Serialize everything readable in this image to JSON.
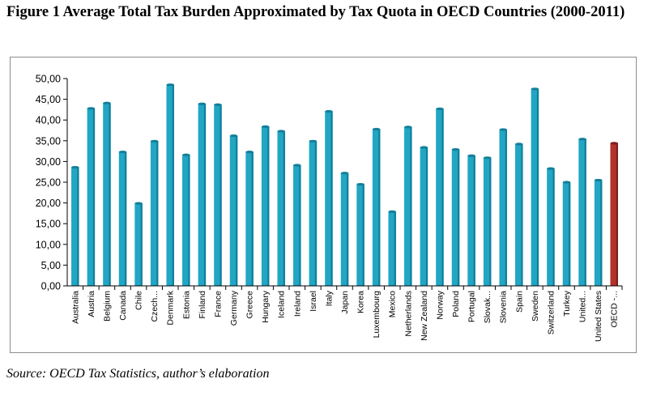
{
  "figure": {
    "caption": "Figure 1 Average Total Tax Burden Approximated by Tax Quota in OECD Countries (2000-2011)",
    "source": "Source: OECD Tax Statistics, author’s elaboration"
  },
  "colors": {
    "bar": "#21a6c4",
    "bar_dark": "#137f98",
    "highlight": "#b3322d",
    "highlight_dark": "#7d1f1b",
    "axis": "#000000"
  },
  "chart_data": {
    "type": "bar",
    "title": "",
    "xlabel": "",
    "ylabel": "",
    "ylim": [
      0,
      50
    ],
    "yticks": [
      "0,00",
      "5,00",
      "10,00",
      "15,00",
      "20,00",
      "25,00",
      "30,00",
      "35,00",
      "40,00",
      "45,00",
      "50,00"
    ],
    "grid": false,
    "legend": "none",
    "highlight_category": "OECD -...",
    "categories": [
      "Australia",
      "Austria",
      "Belgium",
      "Canada",
      "Chile",
      "Czech...",
      "Denmark",
      "Estonia",
      "Finland",
      "France",
      "Germany",
      "Greece",
      "Hungary",
      "Iceland",
      "Ireland",
      "Israel",
      "Italy",
      "Japan",
      "Korea",
      "Luxembourg",
      "Mexico",
      "Netherlands",
      "New Zealand",
      "Norway",
      "Poland",
      "Portugal",
      "Slovak...",
      "Slovenia",
      "Spain",
      "Sweden",
      "Switzerland",
      "Turkey",
      "United...",
      "United States",
      "OECD -..."
    ],
    "values": [
      28.6,
      42.8,
      44.1,
      32.3,
      19.9,
      34.9,
      48.5,
      31.6,
      43.9,
      43.7,
      36.2,
      32.3,
      38.4,
      37.3,
      29.1,
      34.9,
      42.1,
      27.2,
      24.5,
      37.8,
      17.9,
      38.3,
      33.4,
      42.7,
      32.9,
      31.4,
      30.9,
      37.7,
      34.2,
      47.5,
      28.3,
      25.0,
      35.4,
      25.5,
      34.4
    ]
  }
}
